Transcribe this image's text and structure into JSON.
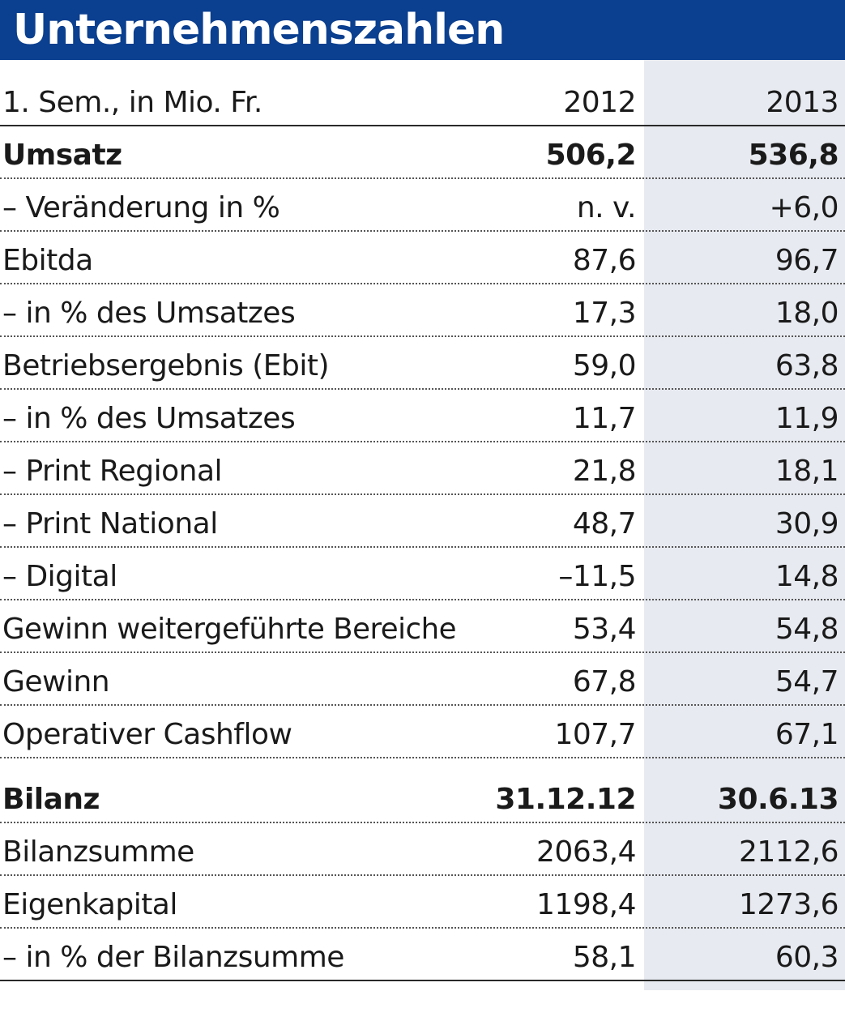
{
  "title": "Unternehmenszahlen",
  "colors": {
    "title_background": "#0b3f8f",
    "title_text": "#ffffff",
    "shaded_column": "#e7eaf0"
  },
  "chart_data": {
    "type": "table",
    "title": "Unternehmenszahlen",
    "header": {
      "label": "1. Sem., in Mio. Fr.",
      "col1": "2012",
      "col2": "2013"
    },
    "rows": [
      {
        "label": "Umsatz",
        "v1": "506,2",
        "v2": "536,8",
        "bold": true
      },
      {
        "label": "– Veränderung in %",
        "v1": "n. v.",
        "v2": "+6,0"
      },
      {
        "label": "Ebitda",
        "v1": "87,6",
        "v2": "96,7"
      },
      {
        "label": "– in % des Umsatzes",
        "v1": "17,3",
        "v2": "18,0"
      },
      {
        "label": "Betriebsergebnis (Ebit)",
        "v1": "59,0",
        "v2": "63,8"
      },
      {
        "label": "– in % des Umsatzes",
        "v1": "11,7",
        "v2": "11,9"
      },
      {
        "label": "– Print Regional",
        "v1": "21,8",
        "v2": "18,1"
      },
      {
        "label": "– Print National",
        "v1": "48,7",
        "v2": "30,9"
      },
      {
        "label": "– Digital",
        "v1": "–11,5",
        "v2": "14,8"
      },
      {
        "label": "Gewinn weitergeführte Bereiche",
        "v1": "53,4",
        "v2": "54,8"
      },
      {
        "label": "Gewinn",
        "v1": "67,8",
        "v2": "54,7"
      },
      {
        "label": "Operativer Cashflow",
        "v1": "107,7",
        "v2": "67,1"
      },
      {
        "label": "Bilanz",
        "v1": "31.12.12",
        "v2": "30.6.13",
        "bold": true,
        "section": true
      },
      {
        "label": "Bilanzsumme",
        "v1": "2063,4",
        "v2": "2112,6"
      },
      {
        "label": "Eigenkapital",
        "v1": "1198,4",
        "v2": "1273,6"
      },
      {
        "label": "– in % der Bilanzsumme",
        "v1": "58,1",
        "v2": "60,3"
      }
    ]
  }
}
